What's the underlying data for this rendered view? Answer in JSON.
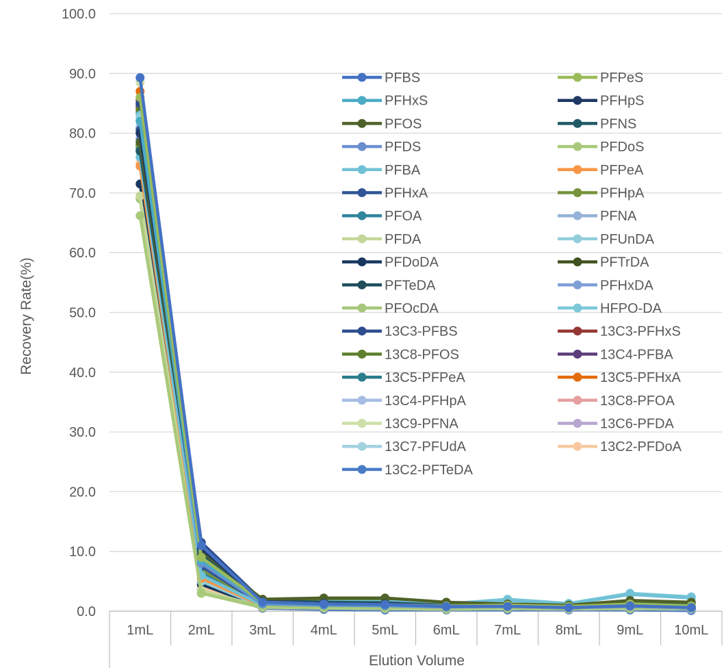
{
  "chart_data": {
    "type": "line",
    "title": "",
    "xlabel": "Elution Volume",
    "ylabel": "Recovery Rate(%)",
    "ylim": [
      0,
      100
    ],
    "yticks": [
      "0.0",
      "10.0",
      "20.0",
      "30.0",
      "40.0",
      "50.0",
      "60.0",
      "70.0",
      "80.0",
      "90.0",
      "100.0"
    ],
    "categories": [
      "1mL",
      "2mL",
      "3mL",
      "4mL",
      "5mL",
      "6mL",
      "7mL",
      "8mL",
      "9mL",
      "10mL"
    ],
    "grid": "horizontal",
    "legend_position": "inside-top-right",
    "series": [
      {
        "name": "PFBS",
        "color": "#4472C4",
        "values": [
          89.3,
          11.0,
          1.5,
          1.2,
          1.1,
          0.8,
          0.8,
          0.6,
          0.9,
          0.6
        ]
      },
      {
        "name": "PFPeS",
        "color": "#9BBB59",
        "values": [
          86.0,
          9.0,
          1.5,
          1.2,
          1.1,
          0.9,
          1.0,
          0.8,
          1.2,
          0.9
        ]
      },
      {
        "name": "PFHxS",
        "color": "#4BACC6",
        "values": [
          82.0,
          8.5,
          1.4,
          1.1,
          1.0,
          0.8,
          1.0,
          0.7,
          1.0,
          0.8
        ]
      },
      {
        "name": "PFHpS",
        "color": "#1F3864",
        "values": [
          80.0,
          10.5,
          1.6,
          1.3,
          1.2,
          0.9,
          0.9,
          0.7,
          1.0,
          0.7
        ]
      },
      {
        "name": "PFOS",
        "color": "#4F6228",
        "values": [
          78.5,
          10.0,
          2.0,
          2.2,
          2.2,
          1.5,
          1.2,
          1.0,
          1.8,
          1.5
        ]
      },
      {
        "name": "PFNS",
        "color": "#215967",
        "values": [
          77.0,
          9.5,
          1.8,
          1.5,
          1.4,
          1.0,
          1.0,
          0.8,
          1.2,
          1.0
        ]
      },
      {
        "name": "PFDS",
        "color": "#6A8FD0",
        "values": [
          79.0,
          8.0,
          1.2,
          1.0,
          0.9,
          0.7,
          0.8,
          0.6,
          0.8,
          0.6
        ]
      },
      {
        "name": "PFDoS",
        "color": "#A9C97A",
        "values": [
          66.2,
          3.0,
          0.8,
          0.7,
          0.6,
          0.5,
          0.6,
          0.5,
          0.6,
          0.5
        ]
      },
      {
        "name": "PFBA",
        "color": "#70C1D6",
        "values": [
          76.0,
          6.0,
          1.0,
          1.6,
          1.6,
          1.3,
          1.8,
          1.2,
          2.8,
          2.2
        ]
      },
      {
        "name": "PFPeA",
        "color": "#F79646",
        "values": [
          74.5,
          5.5,
          0.9,
          0.8,
          0.7,
          0.6,
          0.7,
          0.5,
          0.8,
          0.6
        ]
      },
      {
        "name": "PFHxA",
        "color": "#2F5597",
        "values": [
          80.5,
          7.5,
          1.1,
          0.9,
          0.8,
          0.6,
          0.7,
          0.5,
          0.7,
          0.5
        ]
      },
      {
        "name": "PFHpA",
        "color": "#77933C",
        "values": [
          78.0,
          7.0,
          1.0,
          0.9,
          0.8,
          0.6,
          0.7,
          0.5,
          0.7,
          0.5
        ]
      },
      {
        "name": "PFOA",
        "color": "#31859C",
        "values": [
          77.5,
          6.5,
          1.0,
          0.8,
          0.7,
          0.6,
          0.6,
          0.5,
          0.7,
          0.5
        ]
      },
      {
        "name": "PFNA",
        "color": "#95B3D7",
        "values": [
          81.0,
          6.0,
          0.9,
          0.8,
          0.7,
          0.5,
          0.6,
          0.5,
          0.6,
          0.4
        ]
      },
      {
        "name": "PFDA",
        "color": "#C4D79B",
        "values": [
          69.5,
          3.5,
          0.7,
          0.6,
          0.5,
          0.4,
          0.5,
          0.4,
          0.5,
          0.4
        ]
      },
      {
        "name": "PFUnDA",
        "color": "#92CDDC",
        "values": [
          82.5,
          5.0,
          0.8,
          0.7,
          0.6,
          0.5,
          0.6,
          0.4,
          0.6,
          0.4
        ]
      },
      {
        "name": "PFDoDA",
        "color": "#17375E",
        "values": [
          71.5,
          4.5,
          0.7,
          0.6,
          0.5,
          0.4,
          0.5,
          0.4,
          0.5,
          0.4
        ]
      },
      {
        "name": "PFTrDA",
        "color": "#3F5220",
        "values": [
          78.0,
          6.5,
          0.9,
          0.8,
          0.7,
          0.5,
          0.6,
          0.4,
          0.6,
          0.4
        ]
      },
      {
        "name": "PFTeDA",
        "color": "#1F4E5A",
        "values": [
          77.0,
          6.0,
          0.8,
          0.7,
          0.6,
          0.5,
          0.5,
          0.4,
          0.5,
          0.4
        ]
      },
      {
        "name": "PFHxDA",
        "color": "#7E9FD6",
        "values": [
          80.0,
          5.0,
          0.7,
          0.6,
          0.5,
          0.4,
          0.5,
          0.3,
          0.5,
          0.3
        ]
      },
      {
        "name": "PFOcDA",
        "color": "#A6C77B",
        "values": [
          69.0,
          3.0,
          0.6,
          0.5,
          0.4,
          0.3,
          0.4,
          0.3,
          0.4,
          0.3
        ]
      },
      {
        "name": "HFPO-DA",
        "color": "#7AC8D8",
        "values": [
          83.0,
          6.5,
          1.0,
          1.5,
          1.5,
          1.2,
          2.0,
          1.3,
          3.0,
          2.4
        ]
      },
      {
        "name": "13C3-PFBS",
        "color": "#2E4D8F",
        "values": [
          85.0,
          11.5,
          1.7,
          1.4,
          1.3,
          1.0,
          1.0,
          0.8,
          1.1,
          0.8
        ]
      },
      {
        "name": "13C3-PFHxS",
        "color": "#953735",
        "values": [
          85.5,
          9.0,
          1.4,
          1.1,
          1.0,
          0.8,
          0.8,
          0.6,
          0.8,
          0.6
        ]
      },
      {
        "name": "13C8-PFOS",
        "color": "#5E7F2E",
        "values": [
          84.0,
          10.0,
          1.9,
          2.0,
          2.0,
          1.4,
          1.1,
          0.9,
          1.6,
          1.3
        ]
      },
      {
        "name": "13C4-PFBA",
        "color": "#5C3D7A",
        "values": [
          84.5,
          8.0,
          1.2,
          1.0,
          0.9,
          0.7,
          0.7,
          0.5,
          0.8,
          0.6
        ]
      },
      {
        "name": "13C5-PFPeA",
        "color": "#2A7D8C",
        "values": [
          83.5,
          7.5,
          1.1,
          0.9,
          0.8,
          0.6,
          0.7,
          0.5,
          0.7,
          0.5
        ]
      },
      {
        "name": "13C5-PFHxA",
        "color": "#E46C0A",
        "values": [
          87.0,
          8.5,
          1.2,
          1.0,
          0.9,
          0.7,
          0.7,
          0.5,
          0.7,
          0.5
        ]
      },
      {
        "name": "13C4-PFHpA",
        "color": "#A6BDE3",
        "values": [
          85.0,
          7.0,
          1.0,
          0.8,
          0.7,
          0.6,
          0.6,
          0.5,
          0.6,
          0.5
        ]
      },
      {
        "name": "13C8-PFOA",
        "color": "#E6A0A0",
        "values": [
          84.8,
          6.5,
          1.0,
          0.8,
          0.7,
          0.5,
          0.6,
          0.4,
          0.6,
          0.4
        ]
      },
      {
        "name": "13C9-PFNA",
        "color": "#CDE0A8",
        "values": [
          88.5,
          6.0,
          0.9,
          0.7,
          0.6,
          0.5,
          0.5,
          0.4,
          0.5,
          0.4
        ]
      },
      {
        "name": "13C6-PFDA",
        "color": "#B8A6D0",
        "values": [
          84.0,
          5.5,
          0.8,
          0.7,
          0.6,
          0.5,
          0.5,
          0.4,
          1.0,
          0.8
        ]
      },
      {
        "name": "13C7-PFUdA",
        "color": "#A2D2E0",
        "values": [
          82.0,
          5.0,
          0.8,
          0.6,
          0.5,
          0.4,
          0.5,
          0.3,
          0.5,
          0.3
        ]
      },
      {
        "name": "13C2-PFDoA",
        "color": "#F8C9A0",
        "values": [
          75.0,
          4.0,
          0.7,
          0.6,
          0.5,
          0.4,
          0.4,
          0.3,
          0.4,
          0.3
        ]
      },
      {
        "name": "13C2-PFTeDA",
        "color": "#4A7CC6",
        "values": [
          80.8,
          3.7,
          0.5,
          0.3,
          0.2,
          0.2,
          0.2,
          0.2,
          0.2,
          0.1
        ]
      }
    ]
  }
}
